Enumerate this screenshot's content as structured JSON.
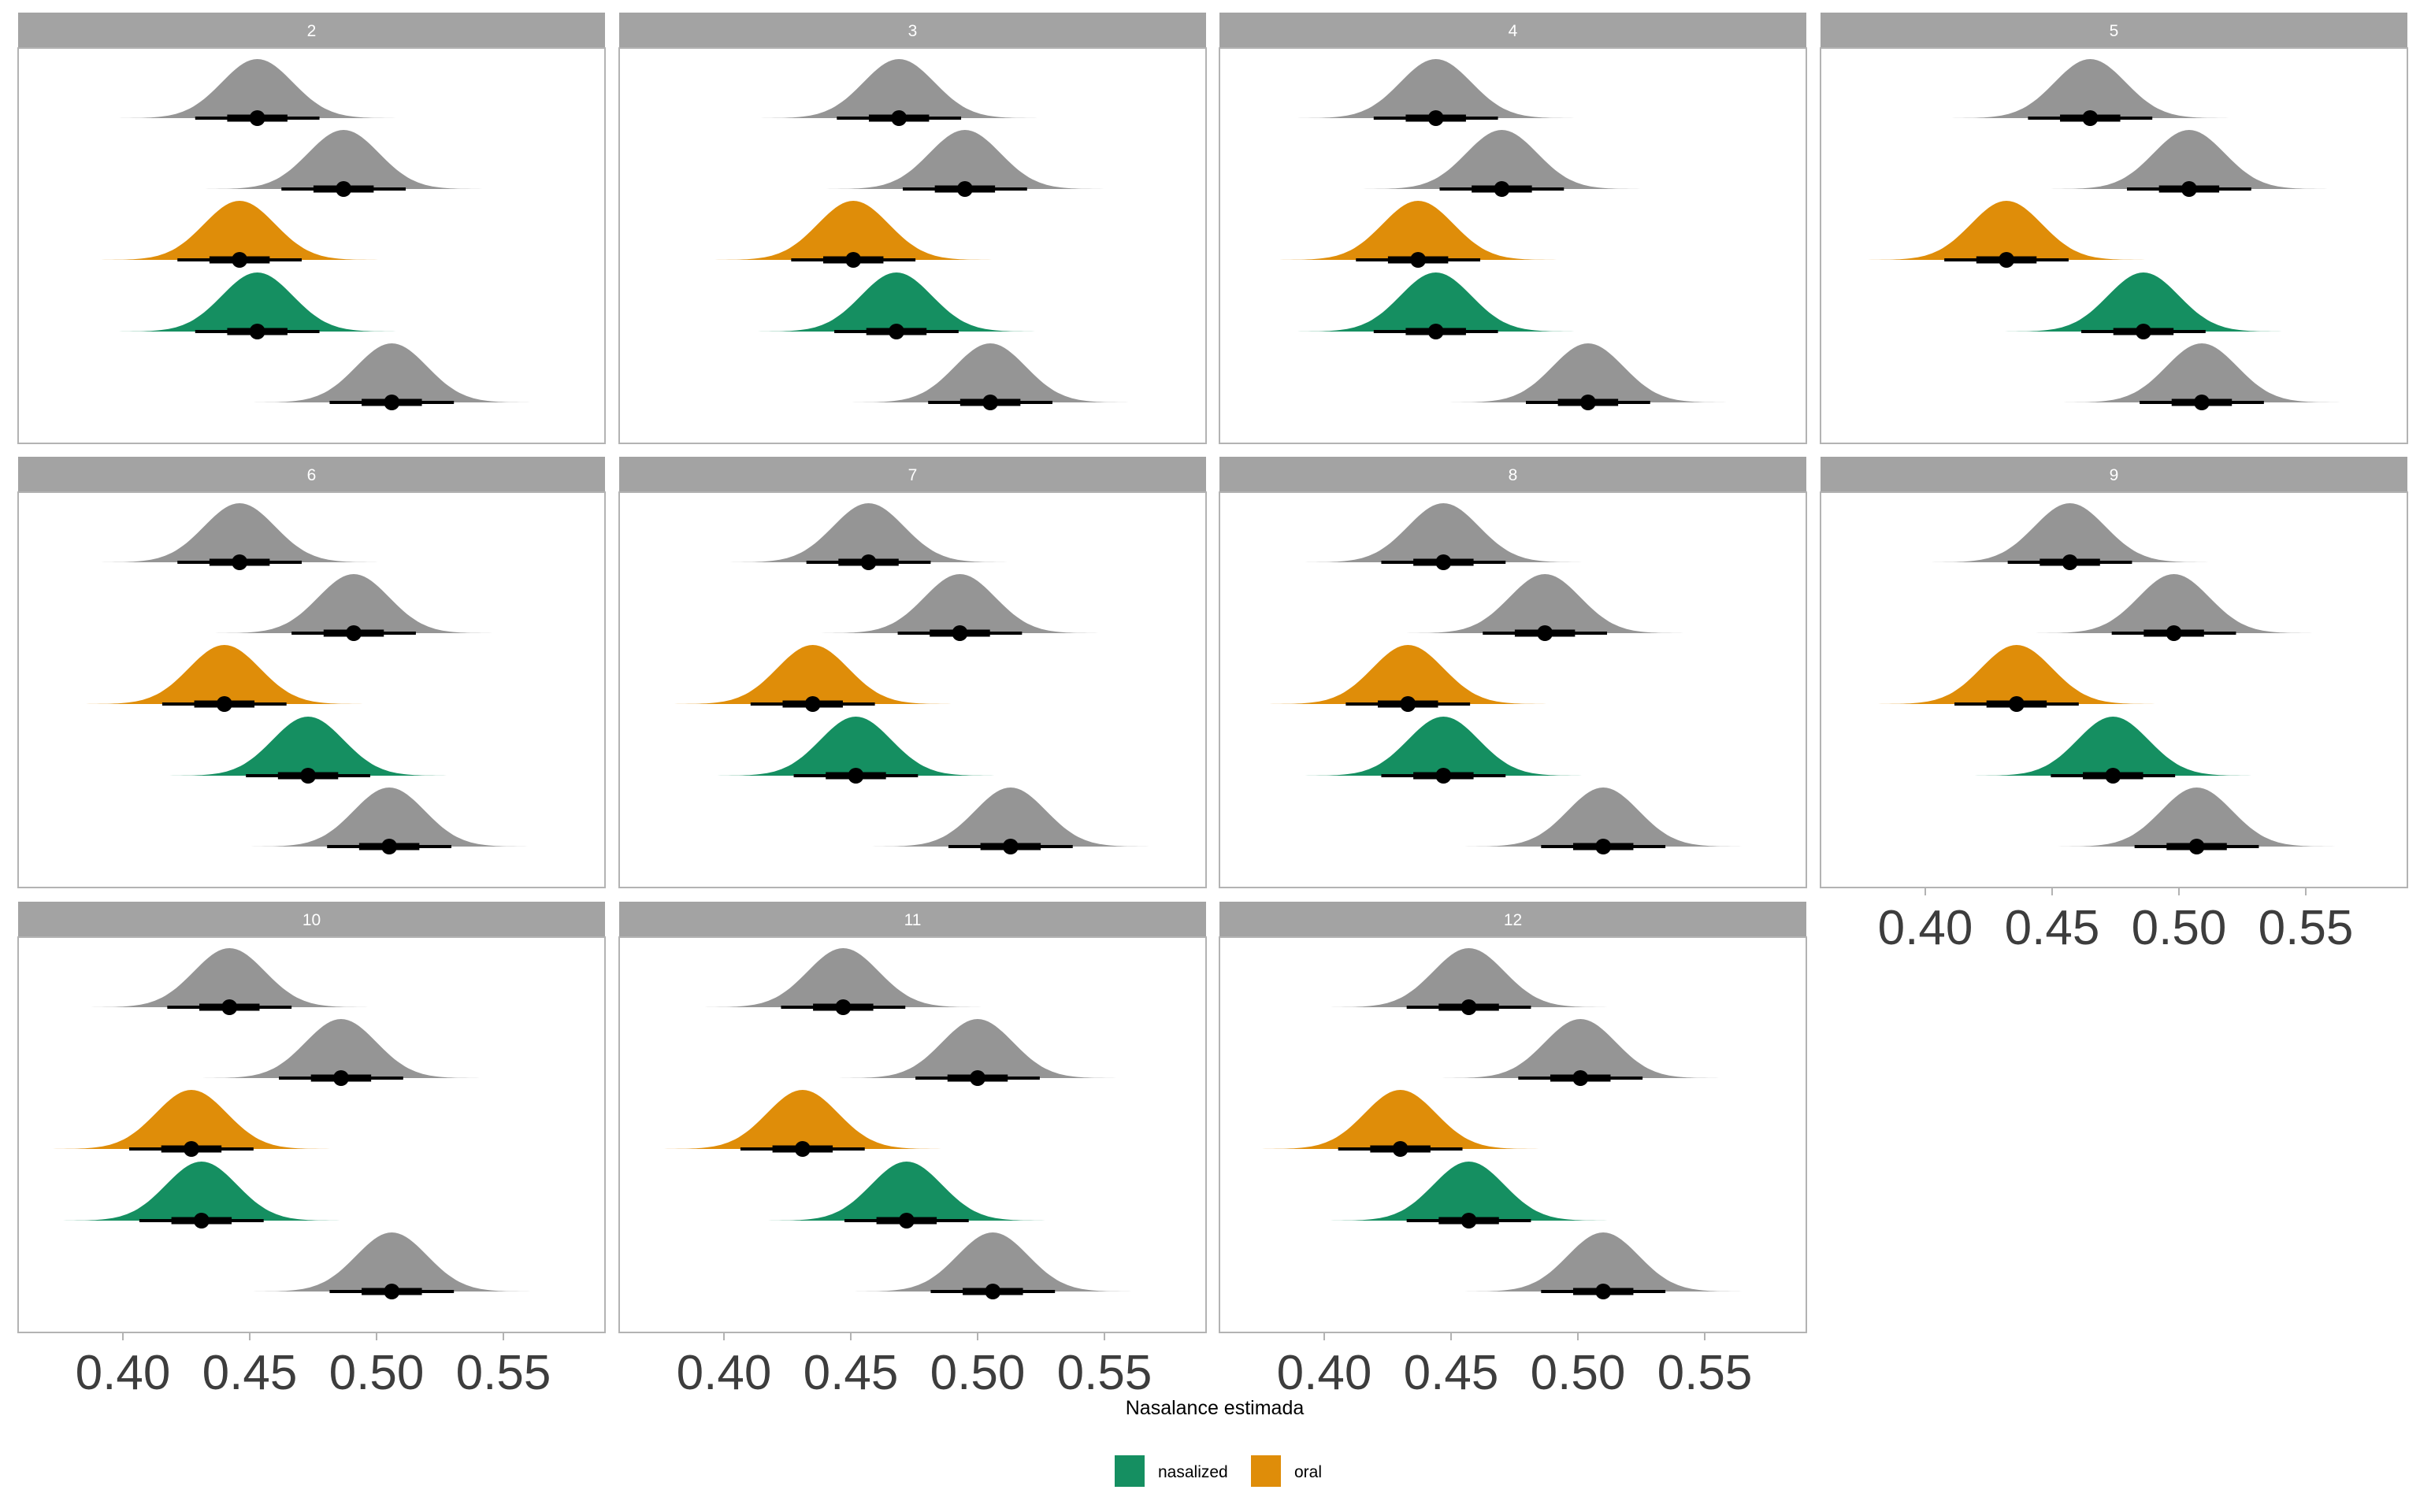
{
  "chart_data": {
    "type": "area",
    "subtype": "faceted half-eye density with median point and 66%/95% intervals",
    "xlabel": "Nasalance estimada",
    "ylabel": "",
    "xlim": [
      0.358,
      0.59
    ],
    "x_ticks": [
      0.4,
      0.45,
      0.5,
      0.55
    ],
    "x_tick_labels": [
      "0.40",
      "0.45",
      "0.50",
      "0.55"
    ],
    "grid": false,
    "legend": {
      "placement": "bottom",
      "entries": [
        {
          "label": "nasalized",
          "color": "#158F61"
        },
        {
          "label": "oral",
          "color": "#DF8D09"
        }
      ]
    },
    "colors": {
      "other": "#959595",
      "nasalized": "#158F61",
      "oral": "#DF8D09",
      "interval": "#000000",
      "strip": "#A3A3A3"
    },
    "row_groups": [
      "other",
      "other",
      "oral",
      "nasalized",
      "other"
    ],
    "interval_sd": 0.0125,
    "panels": [
      {
        "facet": "2",
        "medians": [
          0.453,
          0.487,
          0.446,
          0.453,
          0.506
        ]
      },
      {
        "facet": "3",
        "medians": [
          0.469,
          0.495,
          0.451,
          0.468,
          0.505
        ]
      },
      {
        "facet": "4",
        "medians": [
          0.444,
          0.47,
          0.437,
          0.444,
          0.504
        ]
      },
      {
        "facet": "5",
        "medians": [
          0.465,
          0.504,
          0.432,
          0.486,
          0.509
        ]
      },
      {
        "facet": "6",
        "medians": [
          0.446,
          0.491,
          0.44,
          0.473,
          0.505
        ]
      },
      {
        "facet": "7",
        "medians": [
          0.457,
          0.493,
          0.435,
          0.452,
          0.513
        ]
      },
      {
        "facet": "8",
        "medians": [
          0.447,
          0.487,
          0.433,
          0.447,
          0.51
        ]
      },
      {
        "facet": "9",
        "medians": [
          0.457,
          0.498,
          0.436,
          0.474,
          0.507
        ]
      },
      {
        "facet": "10",
        "medians": [
          0.442,
          0.486,
          0.427,
          0.431,
          0.506
        ]
      },
      {
        "facet": "11",
        "medians": [
          0.447,
          0.5,
          0.431,
          0.472,
          0.506
        ]
      },
      {
        "facet": "12",
        "medians": [
          0.457,
          0.501,
          0.43,
          0.457,
          0.51
        ]
      }
    ]
  }
}
